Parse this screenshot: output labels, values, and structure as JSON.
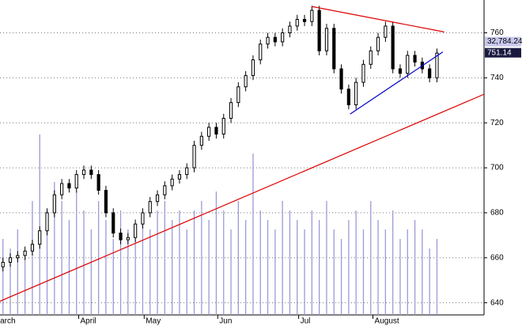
{
  "chart_data": {
    "type": "candlestick",
    "open": [
      656,
      658,
      660,
      661,
      663,
      666,
      672,
      680,
      688,
      693,
      691,
      697,
      699,
      697,
      690,
      680,
      671,
      668,
      669,
      675,
      680,
      685,
      688,
      692,
      695,
      697,
      700,
      710,
      714,
      718,
      715,
      722,
      729,
      736,
      741,
      748,
      755,
      758,
      756,
      760,
      763,
      766,
      765,
      770,
      752,
      762,
      744,
      735,
      728,
      738,
      746,
      752,
      758,
      763,
      744,
      742,
      750,
      747,
      744,
      740
    ],
    "high": [
      660,
      662,
      663,
      665,
      668,
      674,
      682,
      690,
      695,
      695,
      699,
      701,
      701,
      699,
      692,
      682,
      673,
      671,
      677,
      682,
      687,
      690,
      694,
      697,
      699,
      702,
      712,
      716,
      720,
      720,
      724,
      731,
      738,
      743,
      750,
      757,
      760,
      760,
      762,
      765,
      768,
      768,
      772,
      772,
      764,
      764,
      746,
      737,
      740,
      748,
      754,
      760,
      765,
      765,
      746,
      752,
      752,
      749,
      746,
      753
    ],
    "low": [
      654,
      656,
      658,
      659,
      661,
      664,
      670,
      678,
      686,
      689,
      689,
      695,
      695,
      688,
      678,
      669,
      666,
      666,
      667,
      673,
      678,
      683,
      686,
      690,
      693,
      695,
      698,
      708,
      712,
      713,
      713,
      720,
      727,
      734,
      739,
      746,
      753,
      754,
      754,
      758,
      761,
      763,
      763,
      750,
      750,
      742,
      733,
      726,
      726,
      736,
      744,
      750,
      756,
      742,
      740,
      740,
      745,
      742,
      738,
      738
    ],
    "close": [
      658,
      660,
      661,
      663,
      666,
      672,
      680,
      688,
      693,
      691,
      697,
      699,
      697,
      690,
      680,
      671,
      668,
      669,
      675,
      680,
      685,
      688,
      692,
      695,
      697,
      700,
      710,
      714,
      718,
      715,
      722,
      729,
      736,
      741,
      748,
      755,
      758,
      756,
      760,
      763,
      766,
      765,
      770,
      752,
      762,
      744,
      735,
      728,
      738,
      746,
      752,
      758,
      763,
      744,
      742,
      750,
      747,
      744,
      740,
      751
    ],
    "volume": [
      40,
      35,
      45,
      30,
      60,
      95,
      55,
      70,
      60,
      50,
      65,
      55,
      45,
      60,
      50,
      40,
      55,
      45,
      40,
      50,
      45,
      55,
      60,
      50,
      55,
      45,
      55,
      60,
      50,
      65,
      55,
      45,
      60,
      50,
      85,
      55,
      50,
      45,
      60,
      55,
      50,
      45,
      55,
      50,
      60,
      45,
      40,
      50,
      55,
      45,
      60,
      50,
      45,
      55,
      40,
      45,
      50,
      45,
      35,
      40
    ],
    "volume_color": "#9a9ad8",
    "vlim": [
      0,
      100
    ],
    "xlim": [
      -0.4,
      65.4
    ],
    "xticks": [
      {
        "value": -1.5,
        "label": "March"
      },
      {
        "value": 10.3,
        "label": "April"
      },
      {
        "value": 19.2,
        "label": "May"
      },
      {
        "value": 29.2,
        "label": "Jun"
      },
      {
        "value": 40.2,
        "label": "Jul"
      },
      {
        "value": 50.3,
        "label": "August"
      }
    ],
    "ylim": [
      634.6,
      774.6
    ],
    "yticks": [
      640,
      660,
      680,
      700,
      720,
      740,
      760
    ],
    "grid": true,
    "trendlines": [
      {
        "color": "#dd0000",
        "x": [
          42,
          60
        ],
        "y": [
          771.7,
          760.4
        ]
      },
      {
        "color": "#0000cc",
        "x": [
          47.2,
          59.8
        ],
        "y": [
          723.9,
          751.5
        ]
      },
      {
        "color": "#dd0000",
        "x": [
          -0.4,
          65.4
        ],
        "y": [
          640.7,
          732.7
        ]
      }
    ],
    "price_tags": [
      {
        "label": "32,784.24",
        "value": 756.1,
        "background": "#c8c8ee",
        "color": "#000000"
      },
      {
        "label": "751.14",
        "value": 751.14,
        "background": "#1a1a40",
        "color": "#ffffff"
      }
    ]
  }
}
